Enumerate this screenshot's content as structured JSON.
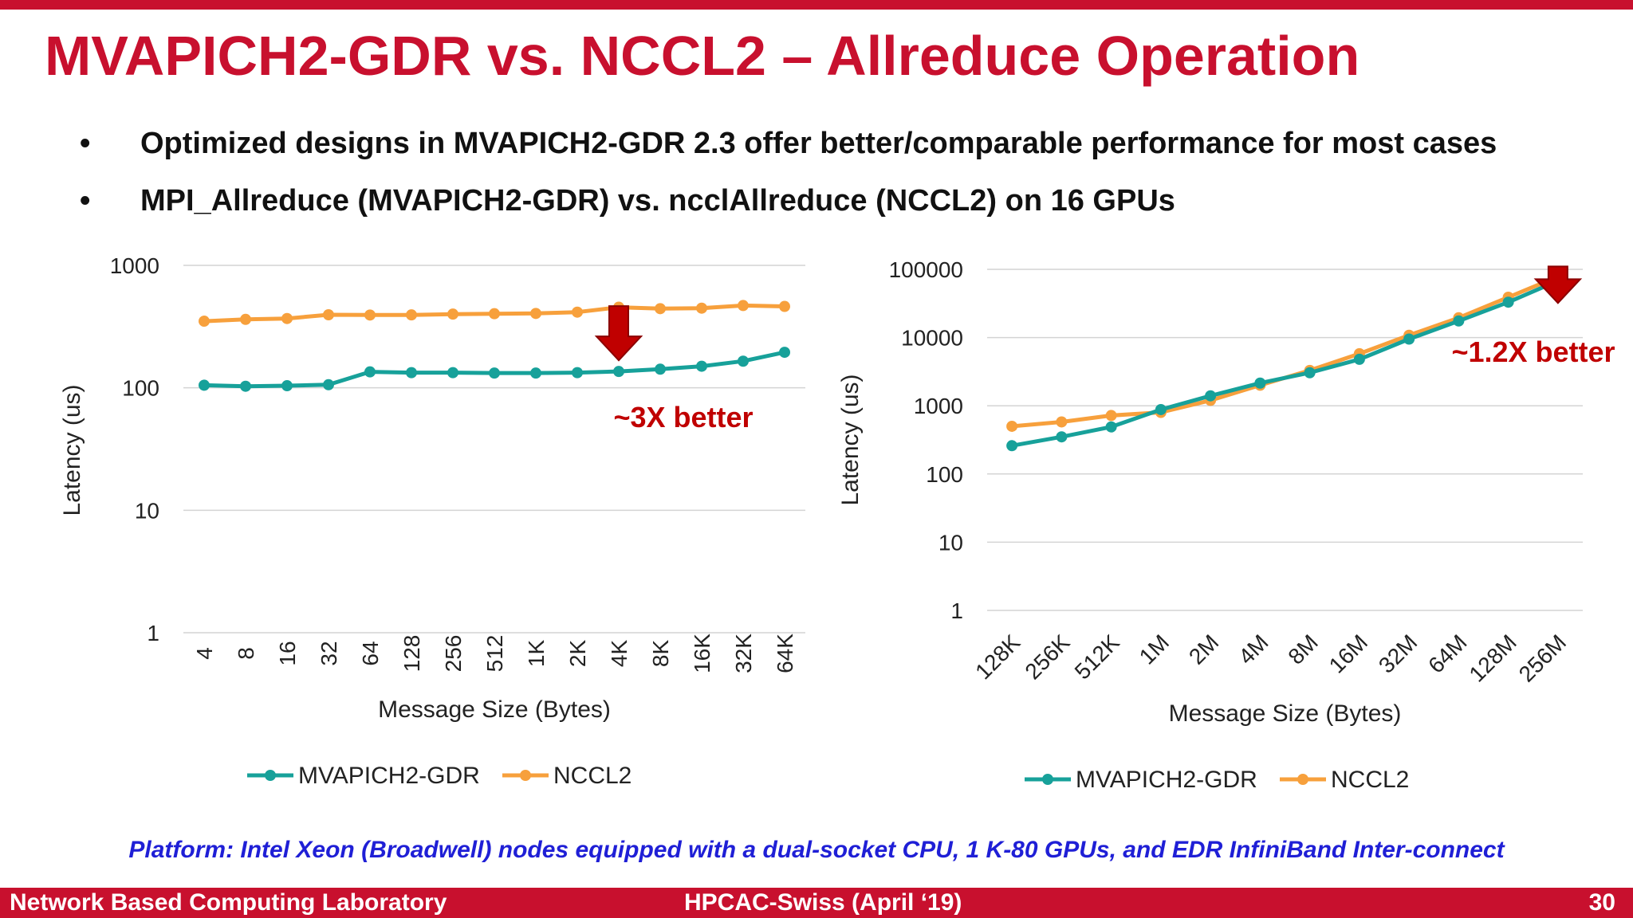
{
  "title": "MVAPICH2-GDR vs. NCCL2 – Allreduce Operation",
  "bullets": [
    "Optimized designs in MVAPICH2-GDR 2.3 offer better/comparable performance for most cases",
    "MPI_Allreduce (MVAPICH2-GDR) vs. ncclAllreduce (NCCL2) on 16 GPUs"
  ],
  "bullet_symbol": "•",
  "platform_note": "Platform: Intel Xeon (Broadwell) nodes equipped with a dual-socket CPU, 1 K-80 GPUs, and EDR InfiniBand Inter-connect",
  "footer": {
    "left": "Network Based Computing Laboratory",
    "center": "HPCAC-Swiss (April ‘19)",
    "page": "30"
  },
  "colors": {
    "title": "#c8102e",
    "mvapich": "#17a19a",
    "nccl": "#f7a03c",
    "annotation": "#c00000",
    "platform": "#1f1fd6"
  },
  "chart_data": [
    {
      "type": "line",
      "yscale": "log",
      "ylim": [
        1,
        1000
      ],
      "yticks": [
        1,
        10,
        100,
        1000
      ],
      "ytick_labels": [
        "1",
        "10",
        "100",
        "1000"
      ],
      "xlabel": "Message Size (Bytes)",
      "ylabel": "Latency (us)",
      "categories": [
        "4",
        "8",
        "16",
        "32",
        "64",
        "128",
        "256",
        "512",
        "1K",
        "2K",
        "4K",
        "8K",
        "16K",
        "32K",
        "64K"
      ],
      "series": [
        {
          "name": "MVAPICH2-GDR",
          "color": "#17a19a",
          "values": [
            105,
            103,
            104,
            106,
            135,
            133,
            133,
            132,
            132,
            133,
            136,
            142,
            150,
            165,
            195
          ]
        },
        {
          "name": "NCCL2",
          "color": "#f7a03c",
          "values": [
            350,
            362,
            368,
            395,
            393,
            394,
            400,
            403,
            405,
            415,
            455,
            443,
            447,
            470,
            462
          ]
        }
      ],
      "annotation": {
        "text": "~3X better",
        "arrow_at": "4K"
      },
      "legend_position": "bottom",
      "grid": true
    },
    {
      "type": "line",
      "yscale": "log",
      "ylim": [
        1,
        100000
      ],
      "yticks": [
        1,
        10,
        100,
        1000,
        10000,
        100000
      ],
      "ytick_labels": [
        "1",
        "10",
        "100",
        "1000",
        "10000",
        "100000"
      ],
      "xlabel": "Message Size (Bytes)",
      "ylabel": "Latency (us)",
      "categories": [
        "128K",
        "256K",
        "512K",
        "1M",
        "2M",
        "4M",
        "8M",
        "16M",
        "32M",
        "64M",
        "128M",
        "256M"
      ],
      "series": [
        {
          "name": "MVAPICH2-GDR",
          "color": "#17a19a",
          "values": [
            260,
            350,
            490,
            880,
            1400,
            2150,
            3050,
            4800,
            9500,
            17500,
            33000,
            68000
          ]
        },
        {
          "name": "NCCL2",
          "color": "#f7a03c",
          "values": [
            500,
            580,
            720,
            800,
            1200,
            2000,
            3300,
            5800,
            10800,
            19500,
            39000,
            78000
          ]
        }
      ],
      "annotation": {
        "text": "~1.2X better",
        "arrow_at": "256M"
      },
      "legend_position": "bottom",
      "grid": true
    }
  ]
}
